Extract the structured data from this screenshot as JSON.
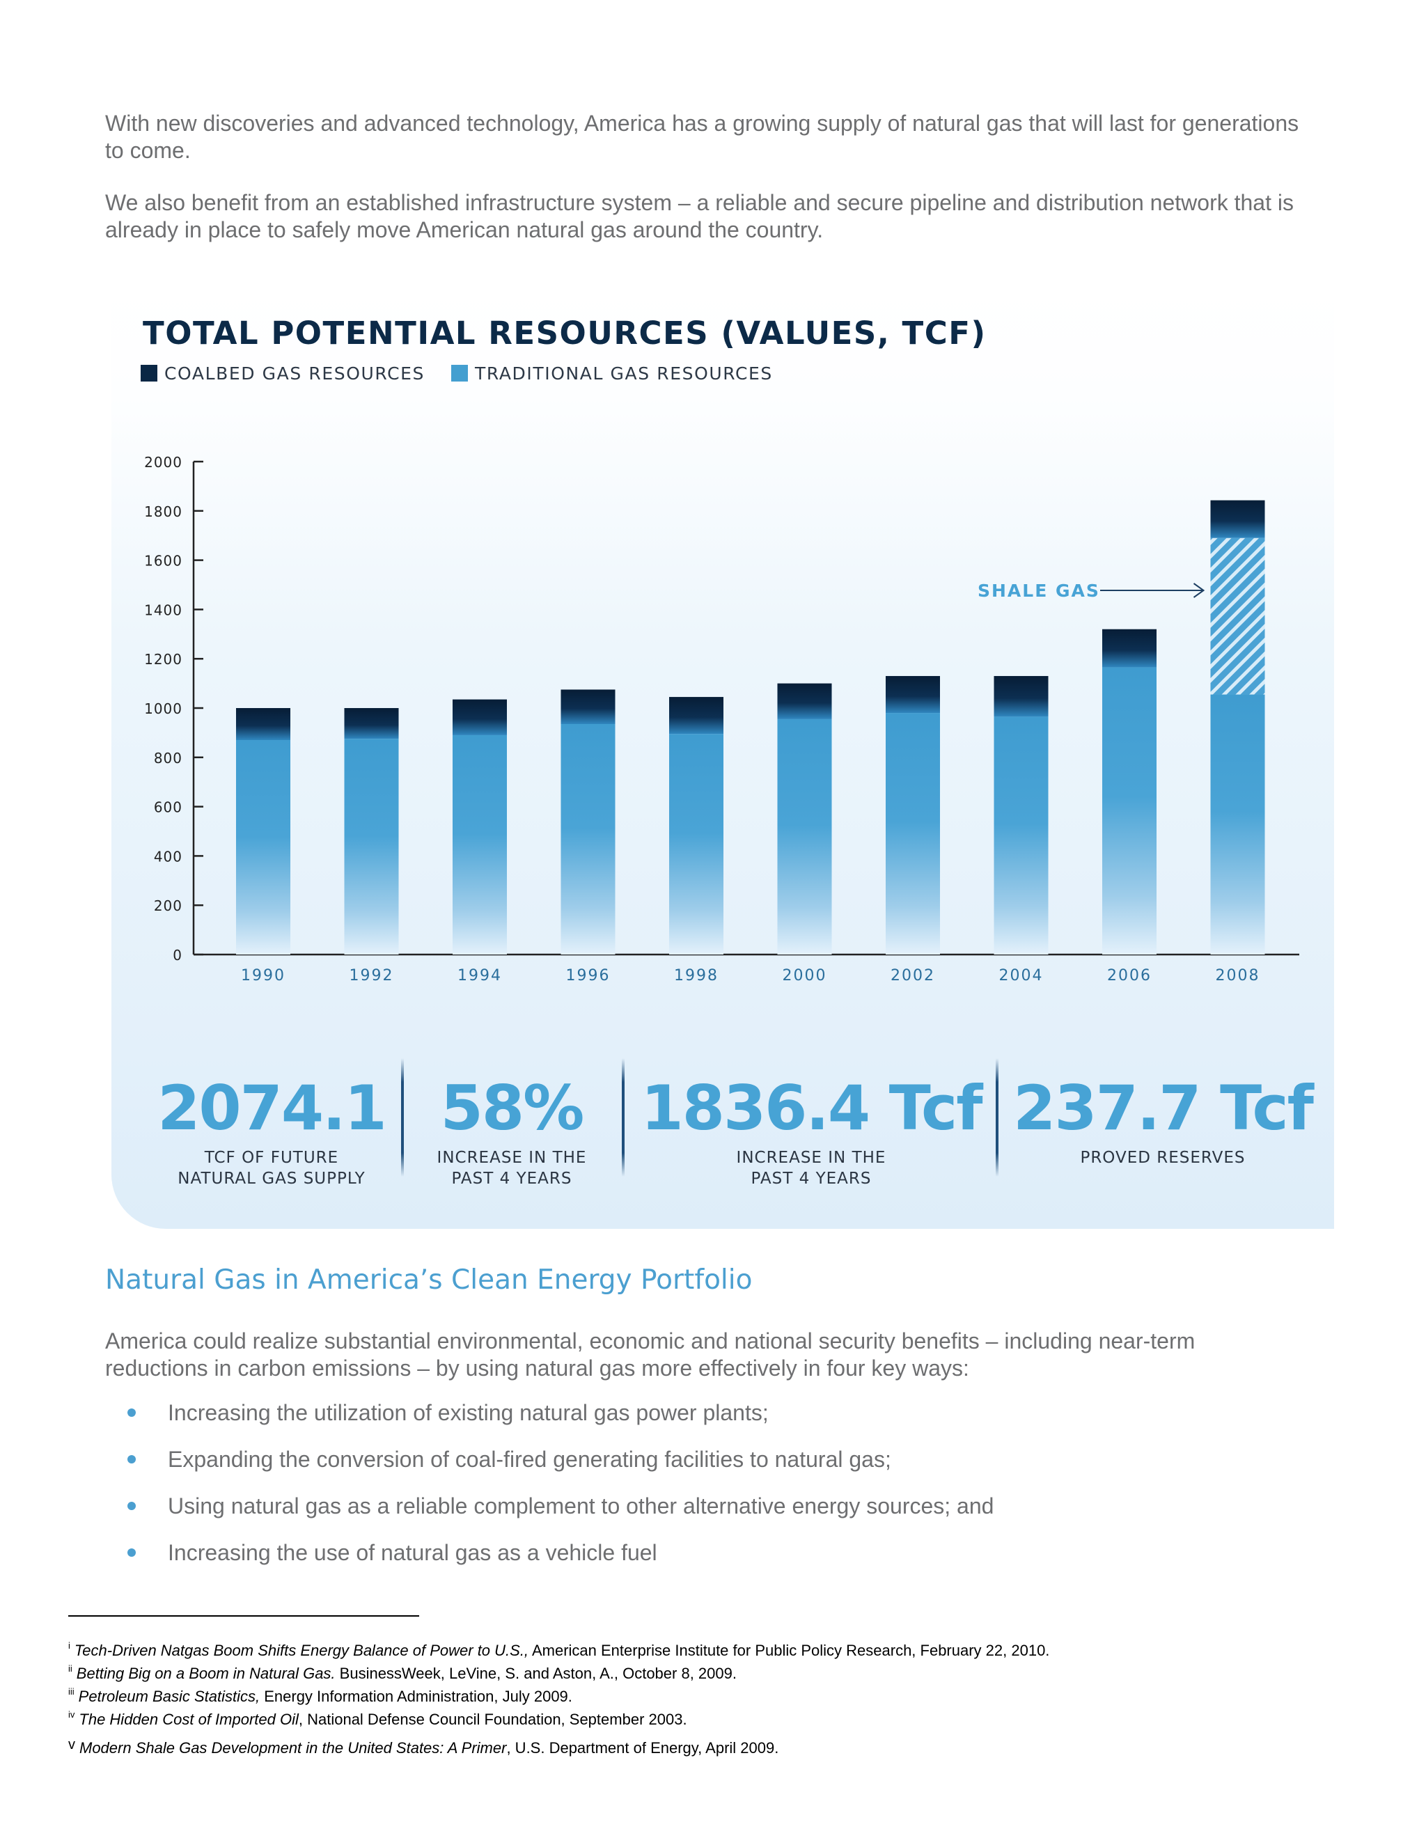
{
  "intro": {
    "paragraph_1": "With new discoveries and advanced technology, America has a growing supply of natural gas that will last for generations to come.",
    "paragraph_2": "We also benefit from an established infrastructure system – a reliable and secure pipeline and distribution network that is already in place to safely move American natural gas around the country."
  },
  "chart_data": {
    "type": "bar",
    "stacked": true,
    "title": "TOTAL POTENTIAL RESOURCES (VALUES, TCF)",
    "xlabel": "",
    "ylabel": "",
    "ylim": [
      0,
      2000
    ],
    "yticks": [
      0,
      200,
      400,
      600,
      800,
      1000,
      1200,
      1400,
      1600,
      1800,
      2000
    ],
    "categories": [
      "1990",
      "1992",
      "1994",
      "1996",
      "1998",
      "2000",
      "2002",
      "2004",
      "2006",
      "2008"
    ],
    "series": [
      {
        "name": "TRADITIONAL GAS RESOURCES",
        "color": "#449fd0",
        "values": [
          870,
          875,
          890,
          935,
          895,
          955,
          980,
          965,
          1165,
          1055
        ]
      },
      {
        "name": "SHALE GAS",
        "color": "#449fd0",
        "values": [
          0,
          0,
          0,
          0,
          0,
          0,
          0,
          0,
          0,
          635
        ]
      },
      {
        "name": "COALBED GAS RESOURCES",
        "color": "#0a2745",
        "values": [
          130,
          125,
          145,
          140,
          150,
          145,
          150,
          165,
          155,
          153
        ]
      }
    ],
    "annotation": {
      "text": "SHALE GAS",
      "target_category": "2008"
    },
    "legend": [
      "COALBED GAS RESOURCES",
      "TRADITIONAL GAS RESOURCES"
    ]
  },
  "legend": {
    "coalbed_label": "COALBED GAS RESOURCES",
    "coalbed_color": "#0a2745",
    "traditional_label": "TRADITIONAL GAS RESOURCES",
    "traditional_color": "#449fd0"
  },
  "stats": [
    {
      "value": "2074.1",
      "caption": "TCF OF FUTURE\nNATURAL GAS SUPPLY"
    },
    {
      "value": "58%",
      "caption": "INCREASE IN THE\nPAST 4 YEARS"
    },
    {
      "value": "1836.4 Tcf",
      "caption": "INCREASE IN THE\nPAST 4 YEARS"
    },
    {
      "value": "237.7 Tcf",
      "caption": "PROVED RESERVES"
    }
  ],
  "section": {
    "heading": "Natural Gas in America’s Clean Energy Portfolio",
    "paragraph": "America could realize substantial environmental, economic and national security benefits – including near-term reductions in carbon emissions – by using natural gas more effectively in four key ways:",
    "bullets": [
      "Increasing the utilization of existing natural gas power plants;",
      "Expanding the conversion of coal-fired generating facilities to natural gas;",
      "Using natural gas as a reliable complement to other alternative energy sources; and",
      "Increasing the use of natural gas as a vehicle fuel"
    ]
  },
  "footnotes": [
    {
      "marker": "i",
      "title": "Tech-Driven Natgas Boom Shifts Energy Balance of Power to U.S.,",
      "rest": " American Enterprise Institute for Public Policy Research, February 22, 2010."
    },
    {
      "marker": "ii",
      "title": "Betting Big on a Boom in Natural Gas.",
      "rest": " BusinessWeek, LeVine, S. and Aston, A., October 8, 2009."
    },
    {
      "marker": "iii",
      "title": "Petroleum Basic Statistics,",
      "rest": " Energy Information Administration, July 2009."
    },
    {
      "marker": "iv",
      "title": "The Hidden Cost of Imported Oil",
      "rest": ", National Defense Council Foundation, September 2003."
    },
    {
      "marker": "v",
      "title": "Modern Shale Gas Development in the United States: A Primer",
      "rest": ", U.S. Department of Energy, April 2009."
    }
  ]
}
